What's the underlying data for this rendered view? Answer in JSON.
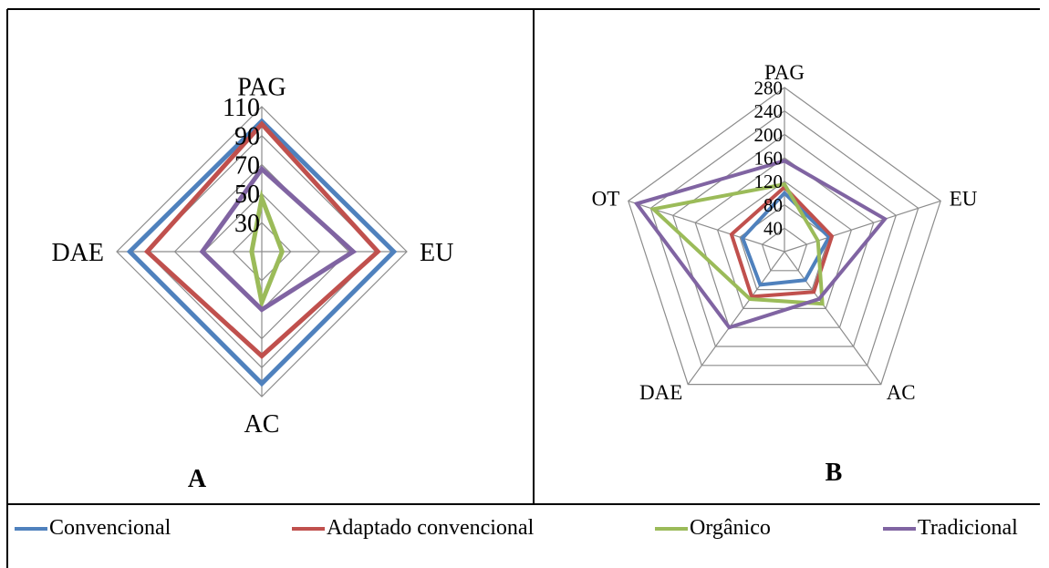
{
  "panels": [
    {
      "letter": "A"
    },
    {
      "letter": "B"
    }
  ],
  "legend": [
    {
      "label": "Convencional",
      "color": "#4f81bd"
    },
    {
      "label": "Adaptado convencional",
      "color": "#c0504d"
    },
    {
      "label": "Orgânico",
      "color": "#9bbb59"
    },
    {
      "label": "Tradicional",
      "color": "#8064a2"
    }
  ],
  "chart_data": [
    {
      "type": "radar",
      "axes": [
        "PAG",
        "EU",
        "AC",
        "DAE"
      ],
      "rlim": [
        10,
        110
      ],
      "ticks": [
        30,
        50,
        70,
        90,
        110
      ],
      "grid": true,
      "series": [
        {
          "name": "Convencional",
          "color": "#4f81bd",
          "values": [
            100,
            101,
            101,
            101
          ]
        },
        {
          "name": "Adaptado convencional",
          "color": "#c0504d",
          "values": [
            98,
            90,
            82,
            89
          ]
        },
        {
          "name": "Orgânico",
          "color": "#9bbb59",
          "values": [
            47,
            24,
            45,
            17
          ]
        },
        {
          "name": "Tradicional",
          "color": "#8064a2",
          "values": [
            67,
            73,
            50,
            51
          ]
        }
      ]
    },
    {
      "type": "radar",
      "axes": [
        "PAG",
        "EU",
        "AC",
        "DAE",
        "OT"
      ],
      "rlim": [
        0,
        280
      ],
      "ticks": [
        40,
        80,
        120,
        160,
        200,
        240,
        280
      ],
      "grid": true,
      "series": [
        {
          "name": "Convencional",
          "color": "#4f81bd",
          "values": [
            100,
            80,
            60,
            70,
            75
          ]
        },
        {
          "name": "Adaptado convencional",
          "color": "#c0504d",
          "values": [
            110,
            85,
            85,
            95,
            95
          ]
        },
        {
          "name": "Orgânico",
          "color": "#9bbb59",
          "values": [
            115,
            60,
            110,
            100,
            235
          ]
        },
        {
          "name": "Tradicional",
          "color": "#8064a2",
          "values": [
            155,
            180,
            100,
            160,
            265
          ]
        }
      ]
    }
  ]
}
